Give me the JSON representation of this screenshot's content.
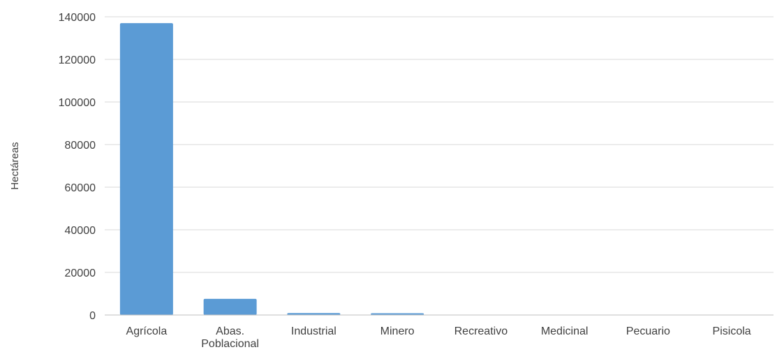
{
  "chart_data": {
    "type": "bar",
    "title": "",
    "xlabel": "",
    "ylabel": "Hectáreas",
    "categories": [
      [
        "Agrícola"
      ],
      [
        "Abas.",
        "Poblacional"
      ],
      [
        "Industrial"
      ],
      [
        "Minero"
      ],
      [
        "Recreativo"
      ],
      [
        "Medicinal"
      ],
      [
        "Pecuario"
      ],
      [
        "Pisicola"
      ]
    ],
    "values": [
      137000,
      7600,
      900,
      800,
      40,
      30,
      20,
      10
    ],
    "ylim": [
      0,
      140000
    ],
    "yticks": [
      0,
      20000,
      40000,
      60000,
      80000,
      100000,
      120000,
      140000
    ],
    "grid": true,
    "legend": "none",
    "colors": {
      "bar": "#5B9BD5",
      "grid": "#D9D9D9",
      "axis": "#BFBFBF",
      "text": "#404040"
    }
  }
}
